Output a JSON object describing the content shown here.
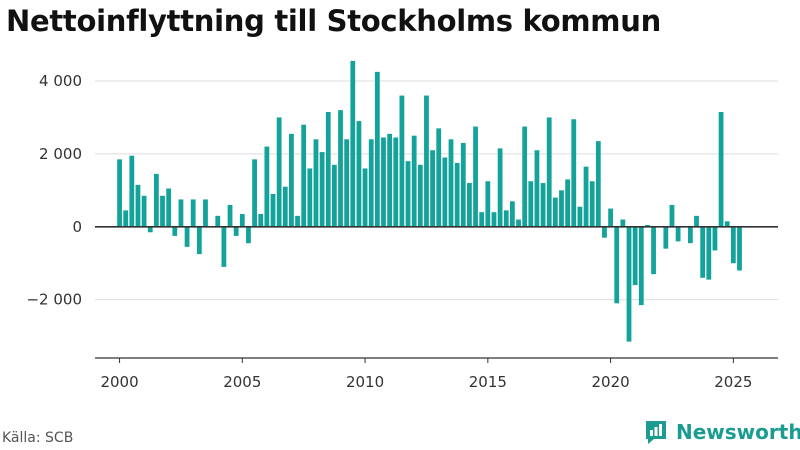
{
  "title": "Nettoinflyttning till Stockholms kommun",
  "source": "Källa: SCB",
  "brand": "Newsworthy",
  "colors": {
    "bar": "#14a39a",
    "brand": "#1a9c91",
    "grid": "#dddddd",
    "zero": "#333333"
  },
  "chart_data": {
    "type": "bar",
    "title": "Nettoinflyttning till Stockholms kommun",
    "xlabel": "",
    "ylabel": "",
    "xlim": [
      1999,
      2026.9
    ],
    "ylim": [
      -3600,
      4850
    ],
    "xticks": [
      2000,
      2005,
      2010,
      2015,
      2020,
      2025
    ],
    "xtick_labels": [
      "2000",
      "2005",
      "2010",
      "2015",
      "2020",
      "2025"
    ],
    "yticks": [
      -2000,
      0,
      2000,
      4000
    ],
    "ytick_labels": [
      "−2 000",
      "0",
      "2 000",
      "4 000"
    ],
    "grid": true,
    "frequency": "quarterly",
    "x_start": 2000,
    "values": [
      1850,
      450,
      1950,
      1150,
      850,
      -150,
      1450,
      850,
      1050,
      -250,
      750,
      -550,
      750,
      -750,
      750,
      0,
      300,
      -1100,
      600,
      -250,
      350,
      -450,
      1850,
      350,
      2200,
      900,
      3000,
      1100,
      2550,
      300,
      2800,
      1600,
      2400,
      2050,
      3150,
      1700,
      3200,
      2400,
      4550,
      2900,
      1600,
      2400,
      4250,
      2450,
      2550,
      2450,
      3600,
      1800,
      2500,
      1700,
      3600,
      2100,
      2700,
      1900,
      2400,
      1750,
      2300,
      1200,
      2750,
      400,
      1250,
      400,
      2150,
      450,
      700,
      200,
      2750,
      1250,
      2100,
      1200,
      3000,
      800,
      1000,
      1300,
      2950,
      550,
      1650,
      1250,
      2350,
      -300,
      500,
      -2100,
      200,
      -3150,
      -1600,
      -2150,
      50,
      -1300,
      0,
      -600,
      600,
      -400,
      0,
      -450,
      300,
      -1400,
      -1450,
      -650,
      3150,
      150,
      -1000,
      -1200
    ]
  }
}
